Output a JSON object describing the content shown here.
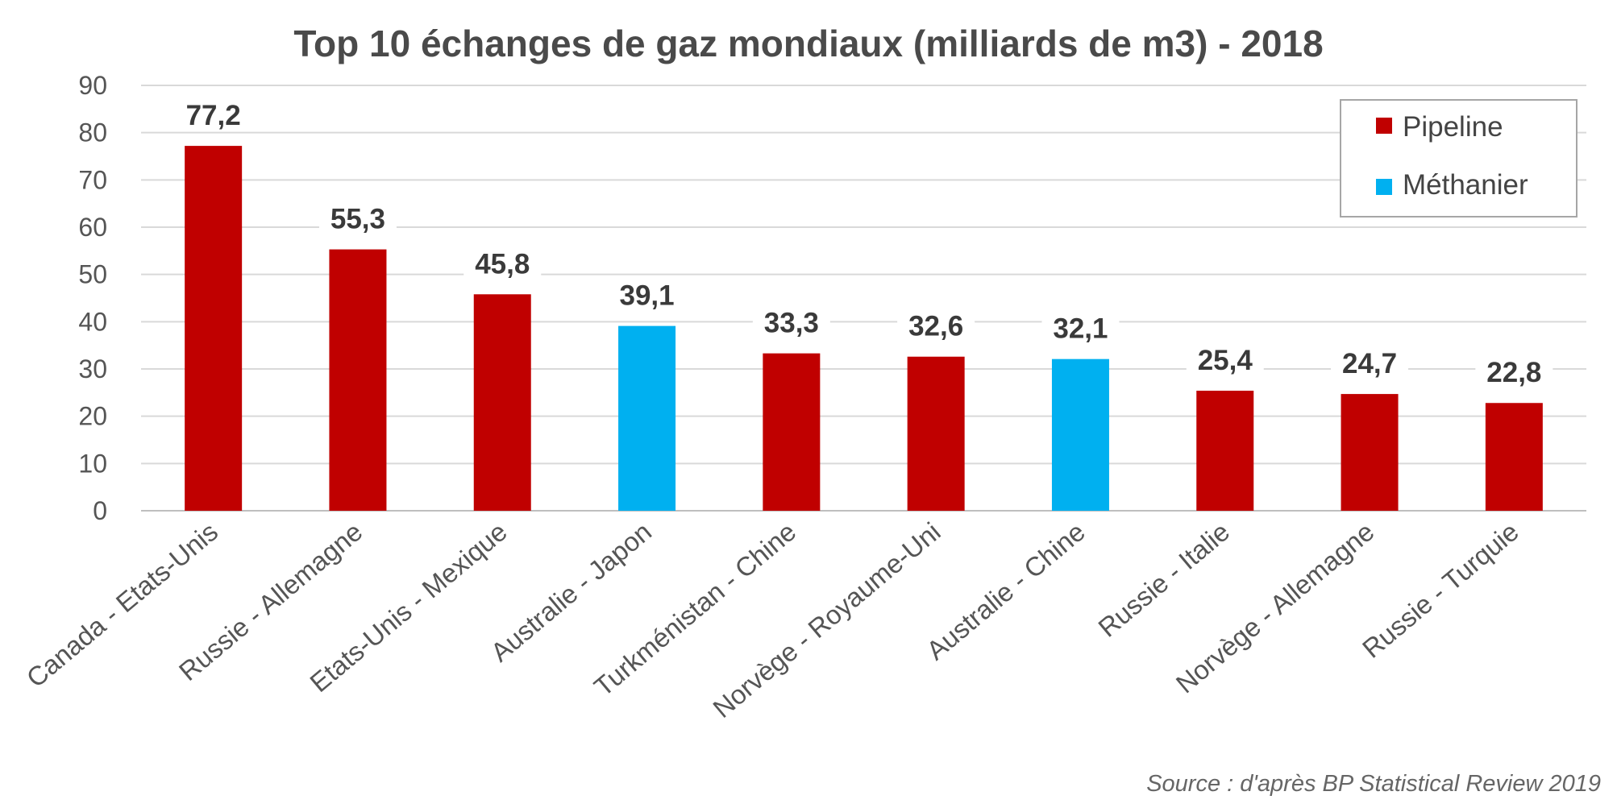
{
  "chart_data": {
    "type": "bar",
    "title": "Top 10 échanges de gaz mondiaux (milliards de m3) - 2018",
    "categories": [
      "Canada - Etats-Unis",
      "Russie - Allemagne",
      "Etats-Unis - Mexique",
      "Australie - Japon",
      "Turkménistan - Chine",
      "Norvège - Royaume-Uni",
      "Australie - Chine",
      "Russie - Italie",
      "Norvège - Allemagne",
      "Russie - Turquie"
    ],
    "values": [
      77.2,
      55.3,
      45.8,
      39.1,
      33.3,
      32.6,
      32.1,
      25.4,
      24.7,
      22.8
    ],
    "data_labels": [
      "77,2",
      "55,3",
      "45,8",
      "39,1",
      "33,3",
      "32,6",
      "32,1",
      "25,4",
      "24,7",
      "22,8"
    ],
    "bar_types": [
      "Pipeline",
      "Pipeline",
      "Pipeline",
      "Méthanier",
      "Pipeline",
      "Pipeline",
      "Méthanier",
      "Pipeline",
      "Pipeline",
      "Pipeline"
    ],
    "legend": [
      {
        "label": "Pipeline",
        "color": "#c00000"
      },
      {
        "label": "Méthanier",
        "color": "#00b0f0"
      }
    ],
    "legend_position": "top-right",
    "ylim": [
      0,
      90
    ],
    "yticks": [
      "0",
      "10",
      "20",
      "30",
      "40",
      "50",
      "60",
      "70",
      "80",
      "90"
    ],
    "ytick_values": [
      0,
      10,
      20,
      30,
      40,
      50,
      60,
      70,
      80,
      90
    ],
    "grid": true,
    "xlabel": "",
    "ylabel": "",
    "source": "Source : d'après BP Statistical Review 2019"
  },
  "colors": {
    "pipeline": "#c00000",
    "methanier": "#00b0f0",
    "grid": "#d9d9d9",
    "axis": "#bfbfbf"
  }
}
